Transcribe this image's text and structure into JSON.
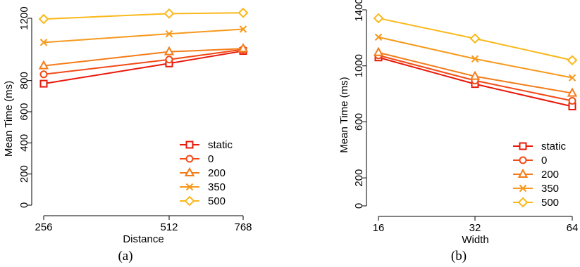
{
  "chart_data": [
    {
      "type": "line",
      "caption": "(a)",
      "xlabel": "Distance",
      "ylabel": "Mean Time (ms)",
      "categories": [
        "256",
        "512",
        "768"
      ],
      "ylim": [
        0,
        1200
      ],
      "yticks": [
        "0",
        "200",
        "400",
        "600",
        "800",
        "1200"
      ],
      "series": [
        {
          "name": "static",
          "values": [
            780,
            910,
            990
          ],
          "color": "#e8180a",
          "marker": "square"
        },
        {
          "name": "0",
          "values": [
            840,
            935,
            1000
          ],
          "color": "#f24a16",
          "marker": "circle"
        },
        {
          "name": "200",
          "values": [
            895,
            985,
            1005
          ],
          "color": "#f47c18",
          "marker": "triangle"
        },
        {
          "name": "350",
          "values": [
            1045,
            1100,
            1130
          ],
          "color": "#f7991c",
          "marker": "x"
        },
        {
          "name": "500",
          "values": [
            1195,
            1230,
            1235
          ],
          "color": "#fab81a",
          "marker": "diamond"
        }
      ],
      "legend": "bottom-right",
      "grid": false
    },
    {
      "type": "line",
      "caption": "(b)",
      "xlabel": "Width",
      "ylabel": "Mean Time (ms)",
      "categories": [
        "16",
        "32",
        "64"
      ],
      "ylim": [
        0,
        1400
      ],
      "yticks": [
        "0",
        "200",
        "600",
        "1000",
        "1400"
      ],
      "series": [
        {
          "name": "static",
          "values": [
            1060,
            870,
            710
          ],
          "color": "#e8180a",
          "marker": "square"
        },
        {
          "name": "0",
          "values": [
            1075,
            895,
            750
          ],
          "color": "#f24a16",
          "marker": "circle"
        },
        {
          "name": "200",
          "values": [
            1095,
            925,
            805
          ],
          "color": "#f47c18",
          "marker": "triangle"
        },
        {
          "name": "350",
          "values": [
            1205,
            1050,
            915
          ],
          "color": "#f7991c",
          "marker": "x"
        },
        {
          "name": "500",
          "values": [
            1340,
            1195,
            1040
          ],
          "color": "#fab81a",
          "marker": "diamond"
        }
      ],
      "legend": "bottom-right",
      "grid": false
    }
  ]
}
